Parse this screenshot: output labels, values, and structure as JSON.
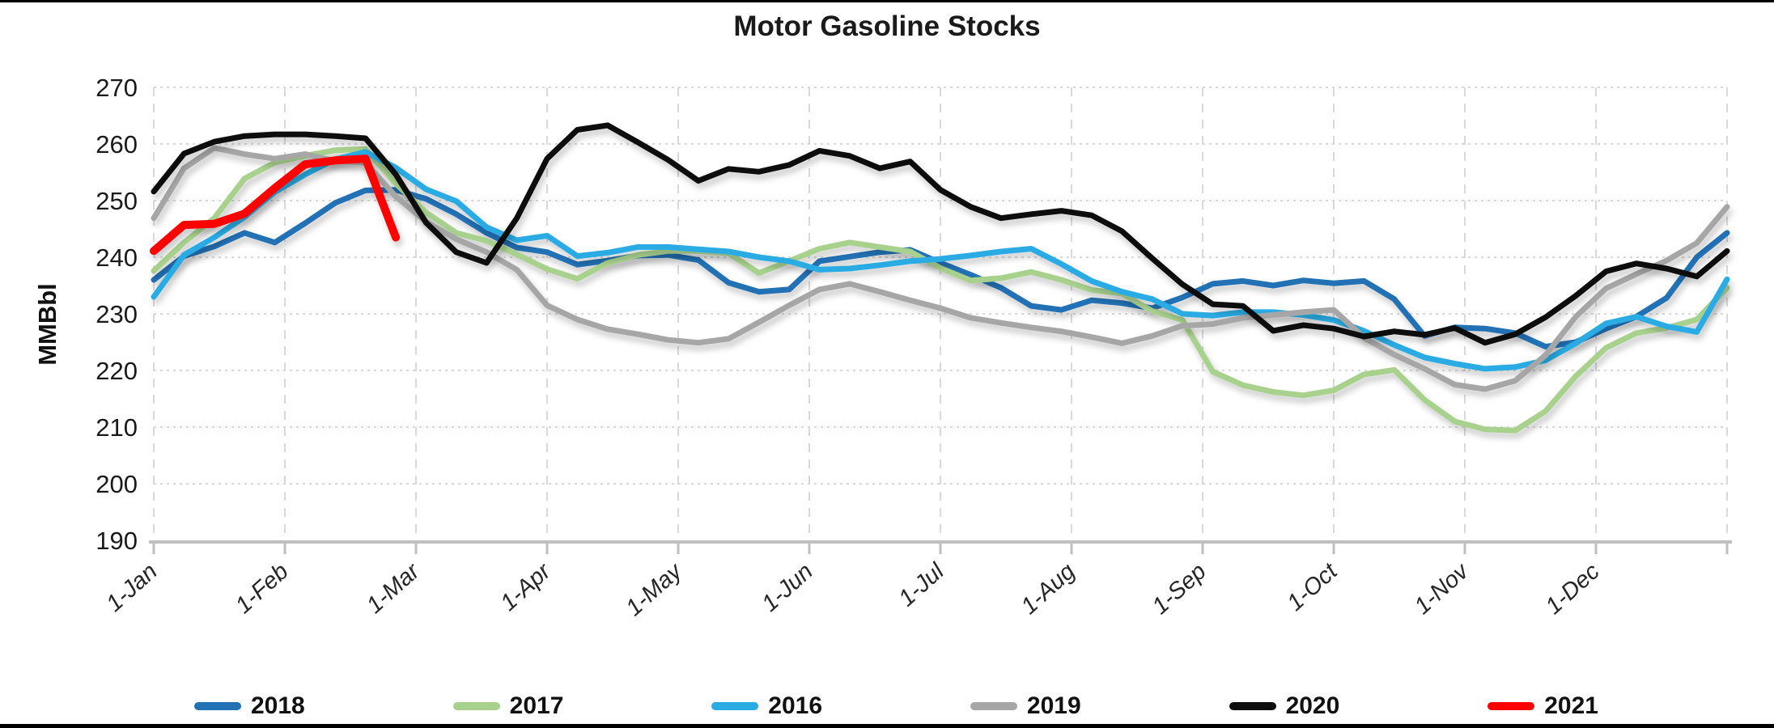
{
  "page": {
    "background": "#FFFFFF",
    "frame_border_color": "#000000"
  },
  "chart_data": {
    "type": "line",
    "title": "Motor Gasoline Stocks",
    "xlabel": "",
    "ylabel": "MMBbl",
    "ylim": [
      190,
      270
    ],
    "y_ticks": [
      190,
      200,
      210,
      220,
      230,
      240,
      250,
      260,
      270
    ],
    "x_tick_labels": [
      "1-Jan",
      "1-Feb",
      "1-Mar",
      "1-Apr",
      "1-May",
      "1-Jun",
      "1-Jul",
      "1-Aug",
      "1-Sep",
      "1-Oct",
      "1-Nov",
      "1-Dec"
    ],
    "grid": "both",
    "gridline_color": "#D9D9D9",
    "axis_line_color": "#BFBFBF",
    "legend_position": "bottom",
    "x_mode": "weekly",
    "points_per_full_year": 53,
    "series": [
      {
        "name": "2018",
        "color": "#2271B5",
        "values": [
          236.0,
          240.2,
          241.9,
          244.3,
          242.6,
          246.0,
          249.6,
          251.8,
          251.9,
          250.3,
          247.6,
          244.3,
          241.7,
          240.9,
          238.7,
          239.4,
          240.3,
          240.4,
          239.5,
          235.5,
          233.9,
          234.3,
          239.3,
          240.1,
          240.9,
          241.3,
          239.0,
          236.9,
          234.6,
          231.4,
          230.7,
          232.4,
          231.9,
          231.0,
          232.9,
          235.3,
          235.8,
          235.0,
          235.9,
          235.4,
          235.8,
          232.6,
          226.1,
          227.6,
          227.4,
          226.6,
          224.2,
          225.0,
          227.4,
          229.5,
          232.8,
          240.0,
          244.3
        ]
      },
      {
        "name": "2017",
        "color": "#A9D18E",
        "values": [
          237.6,
          242.6,
          246.9,
          253.9,
          256.7,
          257.9,
          258.9,
          259.1,
          253.0,
          247.9,
          244.3,
          242.9,
          240.5,
          237.9,
          236.2,
          239.0,
          240.4,
          241.1,
          241.1,
          240.7,
          237.2,
          239.3,
          241.5,
          242.6,
          241.8,
          241.0,
          238.1,
          235.9,
          236.3,
          237.4,
          236.0,
          234.2,
          233.6,
          230.5,
          228.9,
          219.8,
          217.4,
          216.2,
          215.6,
          216.5,
          219.3,
          220.1,
          214.8,
          211.0,
          209.6,
          209.4,
          212.8,
          219.0,
          224.0,
          226.6,
          227.5,
          229.0,
          234.6
        ]
      },
      {
        "name": "2016",
        "color": "#29ABE3",
        "values": [
          233.0,
          240.4,
          243.5,
          247.1,
          251.5,
          254.6,
          257.3,
          258.6,
          255.8,
          252.0,
          249.9,
          245.3,
          243.0,
          243.8,
          240.2,
          240.8,
          241.8,
          241.8,
          241.4,
          241.0,
          240.0,
          239.3,
          237.8,
          238.0,
          238.6,
          239.3,
          239.7,
          240.3,
          241.0,
          241.5,
          238.8,
          235.8,
          233.9,
          232.6,
          230.0,
          229.7,
          230.3,
          230.3,
          229.8,
          228.9,
          227.0,
          224.5,
          222.3,
          221.2,
          220.3,
          220.6,
          221.8,
          224.8,
          228.3,
          229.5,
          227.8,
          226.8,
          236.1
        ]
      },
      {
        "name": "2019",
        "color": "#A6A6A6",
        "values": [
          246.9,
          255.7,
          259.3,
          258.2,
          257.4,
          258.2,
          257.0,
          256.7,
          250.7,
          246.3,
          243.2,
          240.9,
          237.8,
          231.5,
          229.0,
          227.3,
          226.4,
          225.4,
          224.9,
          225.6,
          228.5,
          231.5,
          234.3,
          235.3,
          233.9,
          232.4,
          231.0,
          229.3,
          228.4,
          227.6,
          226.9,
          225.9,
          224.8,
          226.1,
          227.9,
          228.2,
          229.3,
          229.8,
          230.3,
          230.7,
          225.8,
          222.8,
          220.3,
          217.5,
          216.7,
          218.2,
          222.7,
          229.5,
          234.5,
          237.0,
          239.4,
          242.5,
          248.9
        ]
      },
      {
        "name": "2020",
        "color": "#0D0D0D",
        "values": [
          251.6,
          258.3,
          260.4,
          261.4,
          261.7,
          261.7,
          261.4,
          261.0,
          254.6,
          246.1,
          240.9,
          239.0,
          246.9,
          257.4,
          262.5,
          263.3,
          260.3,
          257.2,
          253.5,
          255.6,
          255.1,
          256.3,
          258.8,
          257.9,
          255.7,
          256.9,
          251.9,
          248.9,
          246.9,
          247.6,
          248.2,
          247.4,
          244.6,
          239.8,
          235.2,
          231.7,
          231.4,
          227.0,
          228.0,
          227.4,
          226.0,
          226.9,
          226.3,
          227.5,
          224.9,
          226.4,
          229.4,
          233.2,
          237.5,
          238.9,
          238.0,
          236.6,
          241.1
        ]
      },
      {
        "name": "2021",
        "color": "#FF0000",
        "values": [
          241.1,
          245.7,
          245.9,
          247.7,
          252.2,
          256.4,
          257.1,
          257.4,
          243.5
        ]
      }
    ]
  }
}
